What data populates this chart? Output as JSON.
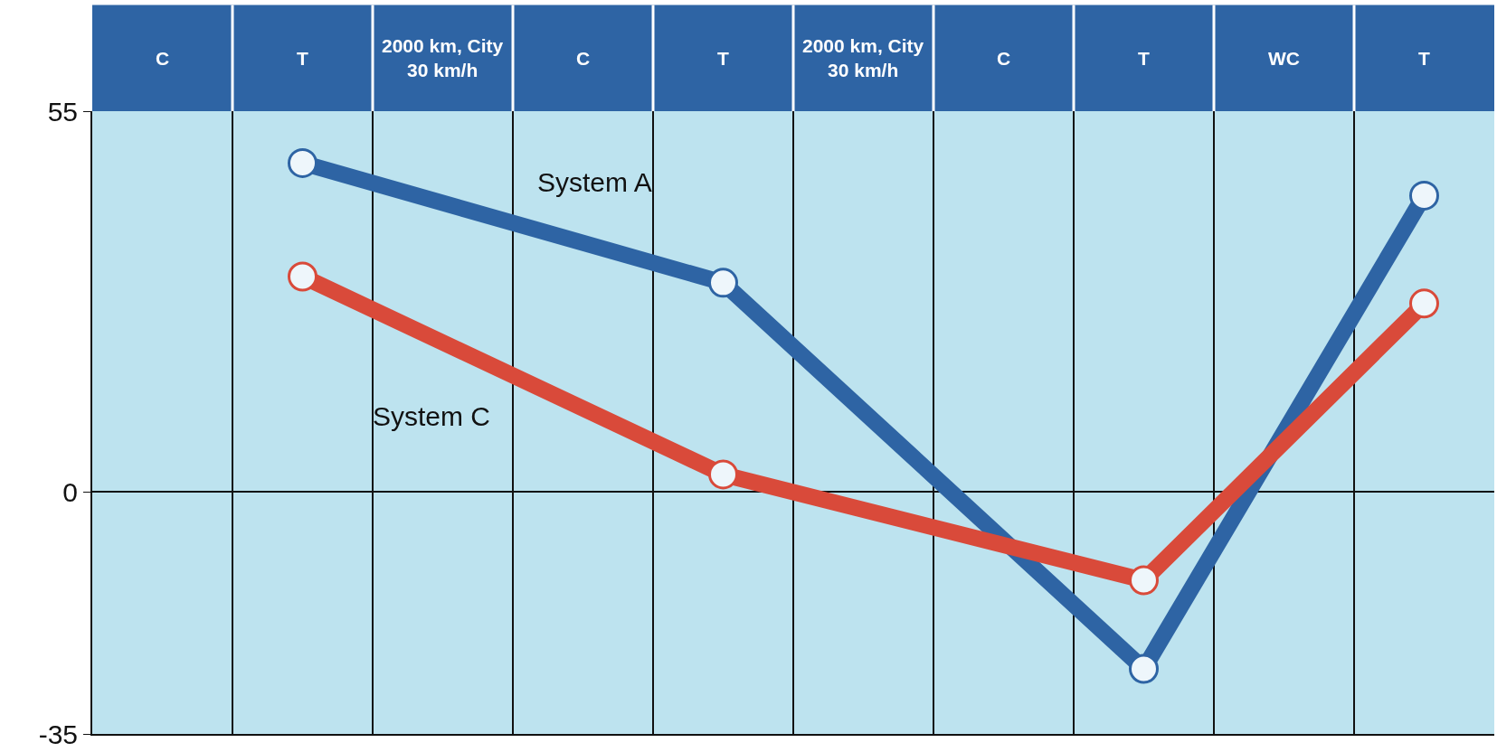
{
  "chart_data": {
    "type": "line",
    "categories": [
      "C",
      "T",
      "2000 km, City\n30 km/h",
      "C",
      "T",
      "2000 km, City\n30 km/h",
      "C",
      "T",
      "WC",
      "T"
    ],
    "series": [
      {
        "name": "System A",
        "color": "#2e64a4",
        "values": [
          null,
          47.5,
          null,
          null,
          30.2,
          null,
          null,
          -25.6,
          null,
          42.8
        ]
      },
      {
        "name": "System C",
        "color": "#d94a3a",
        "values": [
          null,
          31.1,
          null,
          null,
          2.5,
          null,
          null,
          -12.8,
          null,
          27.2
        ]
      }
    ],
    "ylim": [
      -35,
      55
    ],
    "yticks": [
      -35,
      0,
      55
    ],
    "grid": "y",
    "legend": false,
    "marker": "circle",
    "line_style": "solid"
  }
}
